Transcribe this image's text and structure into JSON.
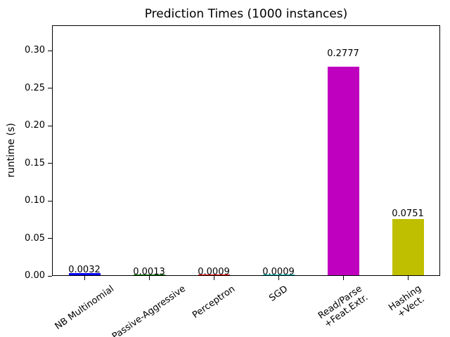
{
  "chart_data": {
    "type": "bar",
    "title": "Prediction Times (1000 instances)",
    "xlabel": "",
    "ylabel": "runtime (s)",
    "categories": [
      "NB Multinomial",
      "Passive-Aggressive",
      "Perceptron",
      "SGD",
      "Read/Parse\n+Feat.Extr.",
      "Hashing\n+Vect."
    ],
    "values": [
      0.0032,
      0.0013,
      0.0009,
      0.0009,
      0.2777,
      0.0751
    ],
    "value_labels": [
      "0.0032",
      "0.0013",
      "0.0009",
      "0.0009",
      "0.2777",
      "0.0751"
    ],
    "bar_colors": [
      "#0000ff",
      "#008000",
      "#ff0000",
      "#00bfbf",
      "#bf00bf",
      "#bfbf00"
    ],
    "ytick_labels": [
      "0.00",
      "0.05",
      "0.10",
      "0.15",
      "0.20",
      "0.25",
      "0.30"
    ],
    "yticks": [
      0.0,
      0.05,
      0.1,
      0.15,
      0.2,
      0.25,
      0.3
    ],
    "ylim": [
      0,
      0.3337
    ],
    "xtick_rotation_deg": 35,
    "grid": false,
    "legend": "none",
    "background_color": "#ffffff",
    "axis_color": "#000000",
    "text_color": "#000000"
  }
}
